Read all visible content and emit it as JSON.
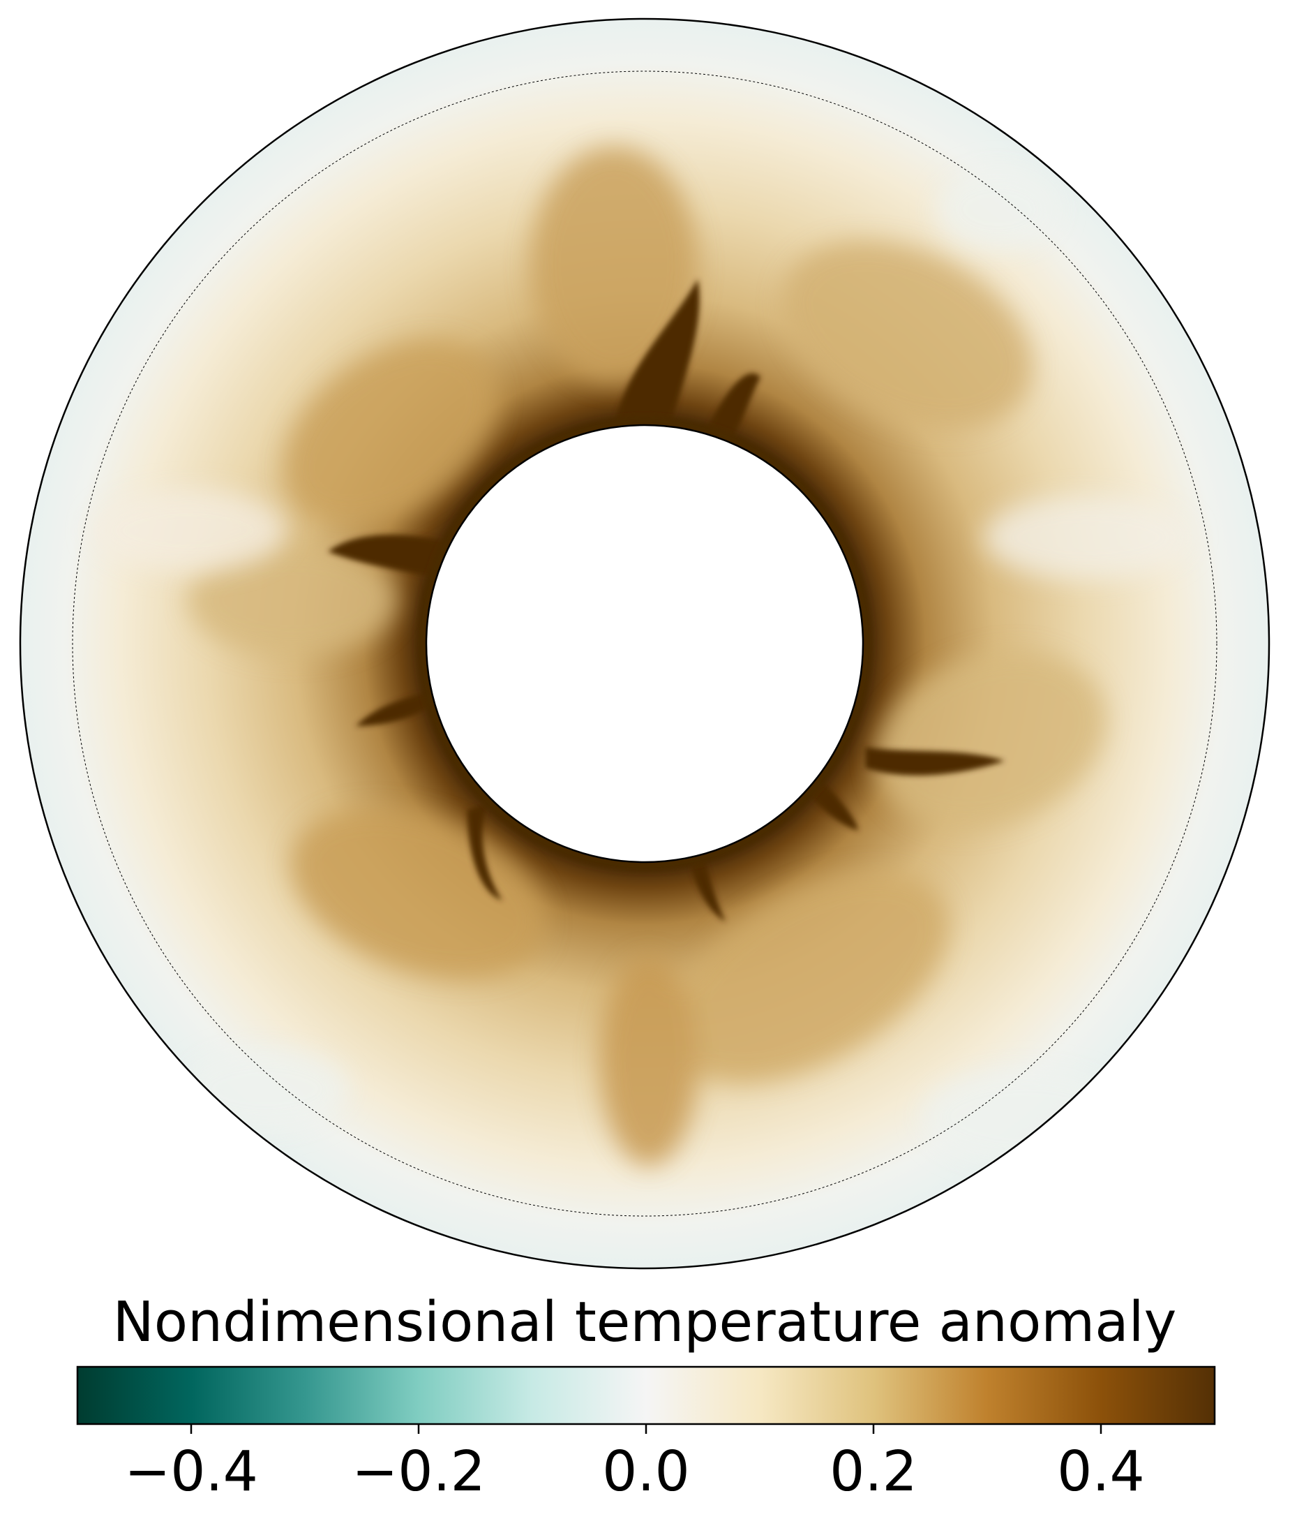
{
  "chart_data": {
    "type": "heatmap",
    "title": "",
    "geometry": "annulus",
    "colormap": "BrBG_r",
    "colorbar": {
      "label": "Nondimensional temperature anomaly",
      "range": [
        -0.5,
        0.5
      ],
      "ticks": [
        {
          "value": -0.4,
          "label": "−0.4"
        },
        {
          "value": -0.2,
          "label": "−0.2"
        },
        {
          "value": 0.0,
          "label": "0.0"
        },
        {
          "value": 0.2,
          "label": "0.2"
        },
        {
          "value": 0.4,
          "label": "0.4"
        }
      ],
      "stops": [
        {
          "value": -0.5,
          "color": "#003c30"
        },
        {
          "value": -0.4,
          "color": "#01665e"
        },
        {
          "value": -0.3,
          "color": "#35978f"
        },
        {
          "value": -0.2,
          "color": "#80cdc1"
        },
        {
          "value": -0.1,
          "color": "#c7eae5"
        },
        {
          "value": 0.0,
          "color": "#f5f5f5"
        },
        {
          "value": 0.1,
          "color": "#f6e8c3"
        },
        {
          "value": 0.2,
          "color": "#dfc27d"
        },
        {
          "value": 0.3,
          "color": "#bf812d"
        },
        {
          "value": 0.4,
          "color": "#8c510a"
        },
        {
          "value": 0.5,
          "color": "#543005"
        }
      ]
    },
    "legend": "none",
    "grid": false
  }
}
